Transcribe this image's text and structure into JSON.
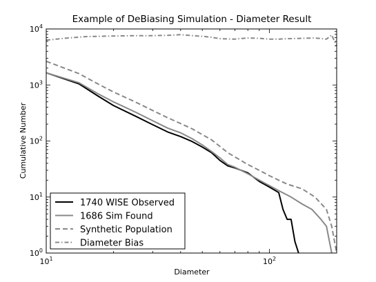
{
  "chart_data": {
    "type": "line",
    "title": "Example of DeBiasing Simulation - Diameter Result",
    "xlabel": "Diameter",
    "ylabel": "Cumulative Number",
    "xscale": "log",
    "yscale": "log",
    "xlim": [
      10,
      200
    ],
    "ylim": [
      1,
      10000
    ],
    "grid": false,
    "legend_position": "lower-left",
    "x_ticks": [
      {
        "value": 10,
        "base": "10",
        "exp": "1"
      },
      {
        "value": 100,
        "base": "10",
        "exp": "2"
      }
    ],
    "y_ticks": [
      {
        "value": 1,
        "base": "10",
        "exp": "0"
      },
      {
        "value": 10,
        "base": "10",
        "exp": "1"
      },
      {
        "value": 100,
        "base": "10",
        "exp": "2"
      },
      {
        "value": 1000,
        "base": "10",
        "exp": "3"
      },
      {
        "value": 10000,
        "base": "10",
        "exp": "4"
      }
    ],
    "series": [
      {
        "name": "1740 WISE Observed",
        "color": "#000000",
        "style": "solid",
        "x": [
          10,
          14,
          17,
          20,
          25,
          30,
          35,
          40,
          45,
          50,
          55,
          60,
          65,
          70,
          80,
          90,
          100,
          110,
          115,
          120,
          125,
          130,
          135
        ],
        "y": [
          1650,
          1050,
          640,
          430,
          280,
          195,
          145,
          120,
          98,
          78,
          62,
          45,
          36,
          33,
          27,
          19,
          15,
          12,
          6,
          4,
          4,
          1.6,
          1
        ]
      },
      {
        "name": "1686 Sim Found",
        "color": "#888888",
        "style": "solid",
        "x": [
          10,
          14,
          17,
          20,
          25,
          30,
          35,
          40,
          45,
          50,
          55,
          60,
          65,
          70,
          80,
          90,
          100,
          110,
          125,
          140,
          155,
          170,
          180,
          190
        ],
        "y": [
          1650,
          1100,
          700,
          500,
          330,
          230,
          170,
          140,
          110,
          85,
          65,
          50,
          38,
          34,
          26,
          20,
          16,
          13,
          10,
          7.5,
          6,
          4,
          3,
          1
        ]
      },
      {
        "name": "Synthetic Population",
        "color": "#888888",
        "style": "dashed",
        "x": [
          10,
          14,
          17,
          20,
          25,
          30,
          35,
          40,
          45,
          50,
          55,
          60,
          65,
          70,
          80,
          90,
          100,
          110,
          120,
          140,
          160,
          180,
          190,
          200
        ],
        "y": [
          2650,
          1600,
          1050,
          750,
          500,
          350,
          260,
          205,
          165,
          130,
          105,
          80,
          62,
          52,
          38,
          30,
          24,
          20,
          17,
          14,
          10,
          6,
          3,
          1
        ]
      },
      {
        "name": "Diameter Bias",
        "color": "#888888",
        "style": "dashdot",
        "x": [
          10,
          12,
          15,
          20,
          25,
          30,
          35,
          40,
          45,
          50,
          55,
          60,
          70,
          80,
          90,
          100,
          110,
          120,
          140,
          160,
          180,
          190,
          200
        ],
        "y": [
          6300,
          6800,
          7300,
          7500,
          7600,
          7600,
          7700,
          7900,
          7600,
          7400,
          7100,
          6700,
          6600,
          6900,
          6800,
          6600,
          6600,
          6700,
          6800,
          6900,
          6600,
          7800,
          5000
        ]
      }
    ]
  }
}
